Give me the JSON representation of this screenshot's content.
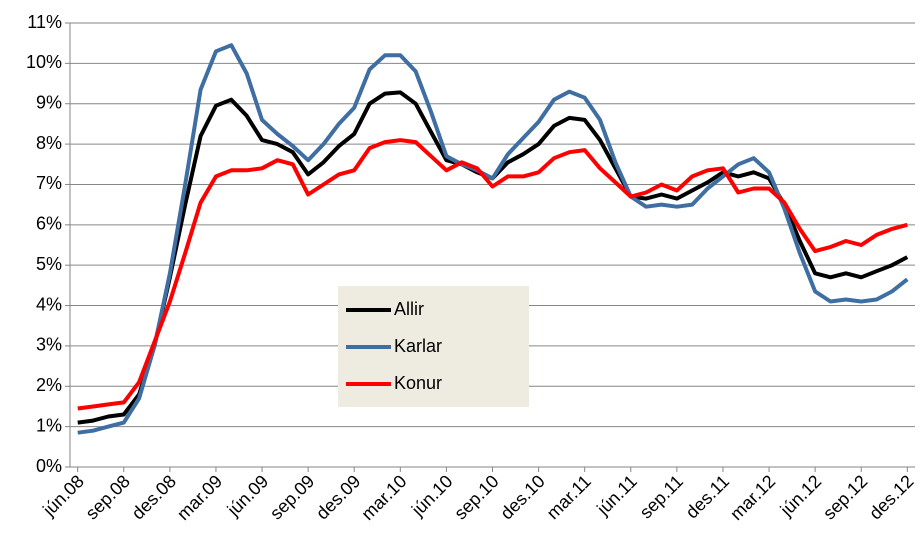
{
  "chart_data": {
    "type": "line",
    "categories": [
      "jún.08",
      null,
      null,
      "sep.08",
      null,
      null,
      "des.08",
      null,
      null,
      "mar.09",
      null,
      null,
      "jún.09",
      null,
      null,
      "sep.09",
      null,
      null,
      "des.09",
      null,
      null,
      "mar.10",
      null,
      null,
      "jún.10",
      null,
      null,
      "sep.10",
      null,
      null,
      "des.10",
      null,
      null,
      "mar.11",
      null,
      null,
      "jún.11",
      null,
      null,
      "sep.11",
      null,
      null,
      "des.11",
      null,
      null,
      "mar.12",
      null,
      null,
      "jún.12",
      null,
      null,
      "sep.12",
      null,
      null,
      "des.12"
    ],
    "series": [
      {
        "name": "Allir",
        "color": "#000000",
        "values": [
          1.1,
          1.15,
          1.25,
          1.3,
          1.8,
          3.0,
          4.7,
          6.5,
          8.2,
          8.95,
          9.1,
          8.7,
          8.1,
          8.0,
          7.8,
          7.25,
          7.55,
          7.95,
          8.25,
          9.0,
          9.25,
          9.28,
          9.0,
          8.3,
          7.6,
          7.5,
          7.3,
          7.15,
          7.55,
          7.75,
          8.0,
          8.45,
          8.65,
          8.6,
          8.1,
          7.4,
          6.7,
          6.65,
          6.75,
          6.65,
          6.85,
          7.05,
          7.3,
          7.2,
          7.3,
          7.15,
          6.5,
          5.6,
          4.8,
          4.7,
          4.8,
          4.7,
          4.85,
          5.0,
          5.2
        ]
      },
      {
        "name": "Karlar",
        "color": "#3f6ea3",
        "values": [
          0.85,
          0.9,
          1.0,
          1.1,
          1.7,
          3.0,
          4.8,
          7.0,
          9.35,
          10.3,
          10.45,
          9.75,
          8.6,
          8.25,
          7.95,
          7.6,
          8.0,
          8.5,
          8.9,
          9.85,
          10.2,
          10.2,
          9.8,
          8.8,
          7.7,
          7.5,
          7.35,
          7.15,
          7.75,
          8.15,
          8.55,
          9.1,
          9.3,
          9.15,
          8.6,
          7.55,
          6.7,
          6.45,
          6.5,
          6.45,
          6.5,
          6.9,
          7.2,
          7.5,
          7.65,
          7.3,
          6.4,
          5.3,
          4.35,
          4.1,
          4.15,
          4.1,
          4.15,
          4.35,
          4.65
        ]
      },
      {
        "name": "Konur",
        "color": "#ff0000",
        "values": [
          1.45,
          1.5,
          1.55,
          1.6,
          2.1,
          3.1,
          4.1,
          5.3,
          6.55,
          7.2,
          7.35,
          7.35,
          7.4,
          7.6,
          7.5,
          6.75,
          7.0,
          7.25,
          7.35,
          7.9,
          8.05,
          8.1,
          8.05,
          7.7,
          7.35,
          7.55,
          7.4,
          6.95,
          7.2,
          7.2,
          7.3,
          7.65,
          7.8,
          7.85,
          7.4,
          7.05,
          6.7,
          6.8,
          7.0,
          6.85,
          7.2,
          7.35,
          7.4,
          6.8,
          6.9,
          6.9,
          6.55,
          5.9,
          5.35,
          5.45,
          5.6,
          5.5,
          5.75,
          5.9,
          6.0
        ]
      }
    ],
    "ylim": [
      0,
      11
    ],
    "yticks": [
      {
        "value": 0,
        "label": "0%"
      },
      {
        "value": 1,
        "label": "1%"
      },
      {
        "value": 2,
        "label": "2%"
      },
      {
        "value": 3,
        "label": "3%"
      },
      {
        "value": 4,
        "label": "4%"
      },
      {
        "value": 5,
        "label": "5%"
      },
      {
        "value": 6,
        "label": "6%"
      },
      {
        "value": 7,
        "label": "7%"
      },
      {
        "value": 8,
        "label": "8%"
      },
      {
        "value": 9,
        "label": "9%"
      },
      {
        "value": 10,
        "label": "10%"
      },
      {
        "value": 11,
        "label": "11%"
      }
    ],
    "grid": true,
    "legend_position": "center"
  }
}
